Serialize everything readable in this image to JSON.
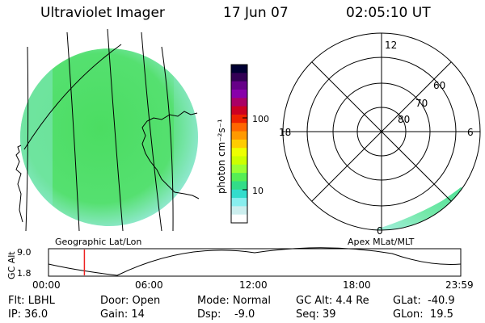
{
  "header": {
    "title": "Ultraviolet Imager",
    "date": "17 Jun 07",
    "time": "02:05:10 UT"
  },
  "colorbar": {
    "unit_label": "photon cm⁻²s⁻¹",
    "ticks": [
      "100",
      "10"
    ],
    "colors": [
      "#000033",
      "#330055",
      "#660088",
      "#8800aa",
      "#aa0066",
      "#cc0022",
      "#ee2200",
      "#ff6600",
      "#ff9900",
      "#ffcc00",
      "#eeff00",
      "#ccff00",
      "#99ff33",
      "#55ee55",
      "#33dd88",
      "#33ddcc",
      "#88eeee",
      "#cceeee",
      "#ffffff"
    ]
  },
  "geo_panel": {
    "label": "Geographic Lat/Lon",
    "disk_color": "#44dd66"
  },
  "polar_panel": {
    "label": "Apex MLat/MLT",
    "hour_labels": {
      "top": "12",
      "left": "18",
      "right": "6",
      "bottom": "0"
    },
    "lat_labels": [
      "60",
      "70",
      "80"
    ]
  },
  "altitude_plot": {
    "ylabel": "GC Alt",
    "yticks": [
      "9.0",
      "1.8"
    ],
    "xticks": [
      "00:00",
      "06:00",
      "12:00",
      "18:00",
      "23:59"
    ],
    "marker_time_hours": 2.09,
    "marker_color": "#ee2222"
  },
  "info": {
    "filter": "Flt: LBHL",
    "ip": "IP: 36.0",
    "door": "Door: Open",
    "gain": "Gain: 14",
    "mode": "Mode: Normal",
    "dsp": "Dsp:    -9.0",
    "gc_alt": "GC Alt: 4.4 Re",
    "seq": "Seq: 39",
    "glat": "GLat:  -40.9",
    "glon": "GLon:  19.5"
  }
}
